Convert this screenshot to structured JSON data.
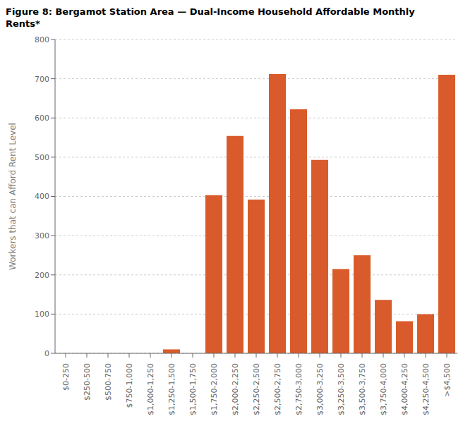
{
  "chart_data": {
    "type": "bar",
    "title": "Figure 8:  Bergamot Station Area — Dual-Income Household Affordable Monthly\nRents*",
    "ylabel": "Workers that can Afford Rent Level",
    "categories": [
      "$0-250",
      "$250-500",
      "$500-750",
      "$750-1,000",
      "$1,000-1,250",
      "$1,250-1,500",
      "$1,500-1,750",
      "$1,750-2,000",
      "$2,000-2,250",
      "$2,250-2,500",
      "$2,500-2,750",
      "$2,750-3,000",
      "$3,000-3,250",
      "$3,250-3,500",
      "$3,500-3,750",
      "$3,750-4,000",
      "$4,000-4,250",
      "$4,250-4,500",
      ">$4,500"
    ],
    "values": [
      0,
      0,
      0,
      0,
      0,
      10,
      0,
      403,
      554,
      392,
      712,
      622,
      493,
      215,
      250,
      136,
      82,
      100,
      710
    ],
    "color": "#D95B2B",
    "ylim": [
      0,
      800
    ],
    "yticks": [
      0,
      100,
      200,
      300,
      400,
      500,
      600,
      700,
      800
    ],
    "grid": true
  }
}
